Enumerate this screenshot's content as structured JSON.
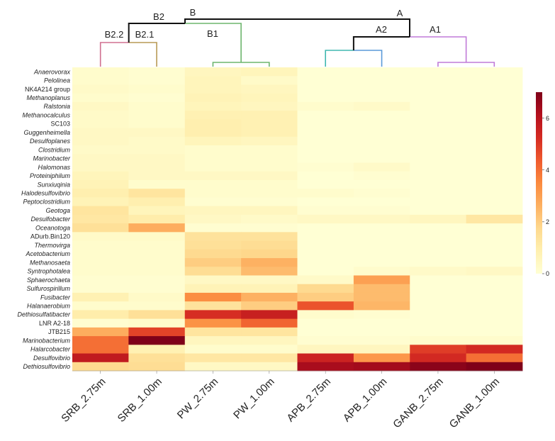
{
  "chart_data": {
    "type": "heatmap",
    "title": "",
    "xlabel": "",
    "ylabel": "",
    "colorbar": {
      "min": 0,
      "max": 7,
      "ticks": [
        0,
        2,
        4,
        6
      ]
    },
    "colormap": [
      "#ffffd4",
      "#fff0b0",
      "#fed98e",
      "#fdb061",
      "#fb8a3e",
      "#ef5a2e",
      "#d42a22",
      "#b4101e",
      "#7f0019"
    ],
    "columns": [
      "SRB_2.75m",
      "SRB_1.00m",
      "PW_2.75m",
      "PW_1.00m",
      "APB_2.75m",
      "APB_1.00m",
      "GANB_2.75m",
      "GANB_1.00m"
    ],
    "rows": [
      {
        "label": "Anaerovorax",
        "italic": true
      },
      {
        "label": "Pelolinea",
        "italic": true
      },
      {
        "label": "NK4A214 group",
        "italic": false
      },
      {
        "label": "Methanoplanus",
        "italic": true
      },
      {
        "label": "Ralstonia",
        "italic": true
      },
      {
        "label": "Methanocalculus",
        "italic": true
      },
      {
        "label": "SC103",
        "italic": false
      },
      {
        "label": "Guggenheimella",
        "italic": true
      },
      {
        "label": "Desulfoplanes",
        "italic": true
      },
      {
        "label": "Clostridium",
        "italic": true
      },
      {
        "label": "Marinobacter",
        "italic": true
      },
      {
        "label": "Halomonas",
        "italic": true
      },
      {
        "label": "Proteiniphilum",
        "italic": true
      },
      {
        "label": "Sunxiuqinia",
        "italic": true
      },
      {
        "label": "Halodesulfovibrio",
        "italic": true
      },
      {
        "label": "Peptoclostridium",
        "italic": true
      },
      {
        "label": "Geotoga",
        "italic": true
      },
      {
        "label": "Desulfobacter",
        "italic": true
      },
      {
        "label": "Oceanotoga",
        "italic": true
      },
      {
        "label": "ADurb.Bin120",
        "italic": false
      },
      {
        "label": "Thermovirga",
        "italic": true
      },
      {
        "label": "Acetobacterium",
        "italic": true
      },
      {
        "label": "Methanosaeta",
        "italic": true
      },
      {
        "label": "Syntrophotalea",
        "italic": true
      },
      {
        "label": "Sphaerochaeta",
        "italic": true
      },
      {
        "label": "Sulfurospirillum",
        "italic": true
      },
      {
        "label": "Fusibacter",
        "italic": true
      },
      {
        "label": "Halanaerobium",
        "italic": true
      },
      {
        "label": "Dethiosulfatibacter",
        "italic": true
      },
      {
        "label": "LNR A2-18",
        "italic": false
      },
      {
        "label": "JTB215",
        "italic": false
      },
      {
        "label": "Marinobacterium",
        "italic": true
      },
      {
        "label": "Halarcobacter",
        "italic": true
      },
      {
        "label": "Desulfovibrio",
        "italic": true
      },
      {
        "label": "Dethiosulfovibrio",
        "italic": true
      }
    ],
    "values": [
      [
        0.2,
        0.1,
        0.5,
        0.6,
        0.0,
        0.0,
        0.0,
        0.0
      ],
      [
        0.2,
        0.1,
        0.6,
        0.3,
        0.0,
        0.0,
        0.0,
        0.0
      ],
      [
        0.3,
        0.2,
        0.6,
        0.5,
        0.0,
        0.0,
        0.0,
        0.0
      ],
      [
        0.2,
        0.1,
        0.7,
        0.6,
        0.0,
        0.0,
        0.0,
        0.0
      ],
      [
        0.4,
        0.2,
        0.6,
        0.5,
        0.2,
        0.3,
        0.0,
        0.0
      ],
      [
        0.3,
        0.2,
        0.8,
        0.8,
        0.0,
        0.0,
        0.0,
        0.0
      ],
      [
        0.3,
        0.2,
        0.9,
        0.8,
        0.0,
        0.0,
        0.0,
        0.0
      ],
      [
        0.4,
        0.4,
        0.9,
        0.8,
        0.0,
        0.0,
        0.0,
        0.0
      ],
      [
        0.4,
        0.3,
        0.6,
        0.5,
        0.0,
        0.0,
        0.0,
        0.0
      ],
      [
        0.3,
        0.3,
        0.2,
        0.2,
        0.0,
        0.0,
        0.0,
        0.0
      ],
      [
        0.4,
        0.4,
        0.2,
        0.2,
        0.0,
        0.0,
        0.0,
        0.0
      ],
      [
        0.4,
        0.4,
        0.2,
        0.2,
        0.1,
        0.3,
        0.0,
        0.0
      ],
      [
        0.6,
        0.4,
        0.4,
        0.4,
        0.0,
        0.1,
        0.0,
        0.0
      ],
      [
        0.7,
        0.2,
        0.2,
        0.2,
        0.0,
        0.0,
        0.0,
        0.0
      ],
      [
        0.9,
        1.3,
        0.2,
        0.2,
        0.2,
        0.1,
        0.0,
        0.0
      ],
      [
        0.7,
        0.9,
        0.1,
        0.1,
        0.0,
        0.0,
        0.0,
        0.0
      ],
      [
        1.3,
        0.6,
        0.5,
        0.5,
        0.1,
        0.1,
        0.0,
        0.0
      ],
      [
        1.2,
        1.0,
        0.4,
        0.3,
        0.4,
        0.4,
        0.5,
        1.2
      ],
      [
        1.5,
        2.7,
        0.1,
        0.1,
        0.0,
        0.0,
        0.0,
        0.0
      ],
      [
        0.3,
        0.3,
        1.4,
        1.4,
        0.0,
        0.0,
        0.0,
        0.0
      ],
      [
        0.2,
        0.2,
        1.5,
        1.6,
        0.0,
        0.0,
        0.0,
        0.0
      ],
      [
        0.2,
        0.2,
        1.7,
        1.8,
        0.0,
        0.0,
        0.0,
        0.0
      ],
      [
        0.2,
        0.2,
        2.0,
        2.6,
        0.0,
        0.0,
        0.0,
        0.0
      ],
      [
        0.2,
        0.2,
        1.6,
        2.4,
        0.0,
        0.2,
        0.3,
        0.4
      ],
      [
        0.1,
        0.1,
        0.4,
        0.4,
        0.3,
        3.0,
        0.0,
        0.0
      ],
      [
        0.1,
        0.1,
        0.7,
        0.7,
        1.7,
        2.4,
        0.0,
        0.0
      ],
      [
        0.8,
        0.3,
        3.4,
        2.6,
        2.0,
        2.4,
        0.0,
        0.0
      ],
      [
        0.2,
        0.2,
        1.4,
        2.0,
        4.5,
        2.5,
        0.0,
        0.0
      ],
      [
        1.0,
        1.5,
        5.2,
        5.6,
        0.2,
        0.1,
        0.0,
        0.0
      ],
      [
        0.1,
        0.2,
        3.3,
        4.2,
        0.0,
        0.0,
        0.0,
        0.0
      ],
      [
        2.7,
        4.8,
        1.3,
        1.3,
        0.0,
        0.0,
        0.0,
        0.0
      ],
      [
        4.0,
        7.0,
        0.5,
        0.5,
        0.1,
        0.1,
        0.2,
        0.2
      ],
      [
        4.0,
        0.8,
        0.2,
        0.2,
        0.5,
        0.5,
        4.9,
        5.3
      ],
      [
        5.8,
        1.5,
        1.2,
        1.2,
        5.5,
        3.2,
        5.3,
        4.0
      ],
      [
        1.7,
        1.6,
        0.4,
        0.4,
        6.3,
        6.4,
        6.8,
        7.0
      ]
    ],
    "dendrogram": {
      "labels": [
        "A",
        "A1",
        "A2",
        "B",
        "B1",
        "B2",
        "B2.1",
        "B2.2"
      ]
    }
  }
}
